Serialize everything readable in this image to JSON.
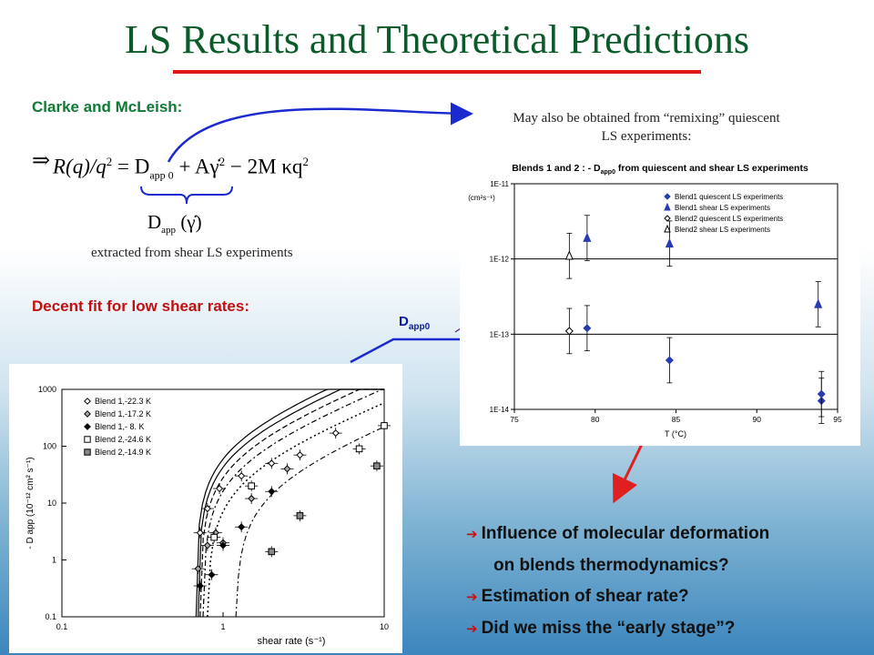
{
  "slide": {
    "title": "LS Results and Theoretical Predictions",
    "authors_label": "Clarke and McLeish:",
    "implies": "⇒",
    "equation": {
      "lhs": "R(q)/q",
      "lhs_sup": "2",
      "rhs": "= D",
      "dapp0_sub": "app 0",
      "term2": "+ Aγ̇",
      "term2_sup": "2",
      "term3": "− 2M  κq",
      "term3_sup": "2",
      "under_label": "D",
      "under_sub": "app",
      "under_arg": "(γ̇)"
    },
    "extracted_note": "extracted from shear LS experiments",
    "remixing_note_line1": "May also be obtained from “remixing” quiescent",
    "remixing_note_line2": "LS experiments:",
    "decent_fit_label": "Decent fit for low shear rates:",
    "dapp0_label": "D",
    "dapp0_sub": "app0",
    "bullets": [
      {
        "icon": "arrow-right-icon",
        "text": "Influence of molecular deformation"
      },
      {
        "icon": "",
        "text": "on blends thermodynamics?"
      },
      {
        "icon": "arrow-right-icon",
        "text": "Estimation of shear rate?"
      },
      {
        "icon": "arrow-right-icon",
        "text": "Did we miss the “early stage”?"
      }
    ],
    "colors": {
      "title": "#0a5a2a",
      "rule": "#e01818",
      "green": "#0e7a34",
      "red": "#c01010",
      "blue_arrow": "#1a2ad0",
      "red_arrow": "#e02020"
    }
  },
  "chart_data": [
    {
      "type": "scatter",
      "title": "Blends 1 and 2 : - D",
      "title_sub": "app0",
      "title_rest": " from quiescent and shear LS experiments",
      "xlabel": "T (°C)",
      "ylabel": "(cm",
      "ylabel_full": "(cm²s⁻¹)",
      "xlim": [
        75,
        95
      ],
      "ylim": [
        1e-14,
        1e-11
      ],
      "yscale": "log",
      "x_ticks": [
        "75",
        "80",
        "85",
        "90",
        "95"
      ],
      "y_ticks": [
        "1E-14",
        "1E-13",
        "1E-12",
        "1E-11"
      ],
      "grid": "horizontal at 1E-13 and 1E-12",
      "legend_position": "top-right",
      "series": [
        {
          "name": "Blend1 quiescent LS experiments",
          "marker": "diamond-filled",
          "points": [
            [
              79.5,
              1.2e-13
            ],
            [
              84.6,
              4.5e-14
            ],
            [
              94.0,
              1.3e-14
            ],
            [
              94.0,
              1.6e-14
            ]
          ]
        },
        {
          "name": "Blend1 shear LS experiments",
          "marker": "triangle-filled",
          "points": [
            [
              79.5,
              1.9e-12
            ],
            [
              84.6,
              1.6e-12
            ],
            [
              93.8,
              2.5e-13
            ]
          ]
        },
        {
          "name": "Blend2 quiescent LS experiments",
          "marker": "diamond-open",
          "points": [
            [
              78.4,
              1.1e-13
            ]
          ]
        },
        {
          "name": "Blend2 shear LS experiments",
          "marker": "triangle-open",
          "points": [
            [
              78.4,
              1.1e-12
            ]
          ]
        }
      ]
    },
    {
      "type": "scatter",
      "xlabel": "shear rate (s",
      "xlabel_full": "shear rate (s⁻¹)",
      "ylabel": "- D app (10⁻¹² cm² s⁻¹)",
      "xscale": "log",
      "yscale": "log",
      "xlim": [
        0.1,
        10
      ],
      "ylim": [
        0.1,
        1000
      ],
      "x_ticks": [
        "0.1",
        "1",
        "10"
      ],
      "y_ticks": [
        "0.1",
        "1",
        "10",
        "100",
        "1000"
      ],
      "legend_position": "top-left",
      "series": [
        {
          "name": "Blend 1,-22.3 K",
          "marker": "diamond-open",
          "points": [
            [
              0.72,
              3
            ],
            [
              0.8,
              8
            ],
            [
              0.95,
              18
            ],
            [
              1.3,
              30
            ],
            [
              2.0,
              50
            ],
            [
              3.0,
              70
            ],
            [
              5.0,
              170
            ]
          ]
        },
        {
          "name": "Blend 1,-17.2 K",
          "marker": "diamond-gray",
          "points": [
            [
              0.7,
              0.7
            ],
            [
              0.8,
              1.8
            ],
            [
              0.9,
              3
            ],
            [
              1.0,
              2
            ],
            [
              1.5,
              12
            ],
            [
              2.5,
              40
            ]
          ]
        },
        {
          "name": "Blend 1,- 8. K",
          "marker": "diamond-filled",
          "points": [
            [
              0.72,
              0.35
            ],
            [
              0.85,
              0.55
            ],
            [
              1.0,
              1.8
            ],
            [
              1.3,
              3.8
            ],
            [
              2.0,
              16
            ]
          ]
        },
        {
          "name": "Blend 2,-24.6 K",
          "marker": "square-open",
          "points": [
            [
              0.88,
              2.5
            ],
            [
              1.5,
              20
            ],
            [
              7.0,
              90
            ],
            [
              10,
              230
            ]
          ]
        },
        {
          "name": "Blend 2,-14.9 K",
          "marker": "square-gray",
          "points": [
            [
              2.0,
              1.4
            ],
            [
              3.0,
              6
            ],
            [
              9.0,
              45
            ]
          ]
        }
      ]
    }
  ]
}
